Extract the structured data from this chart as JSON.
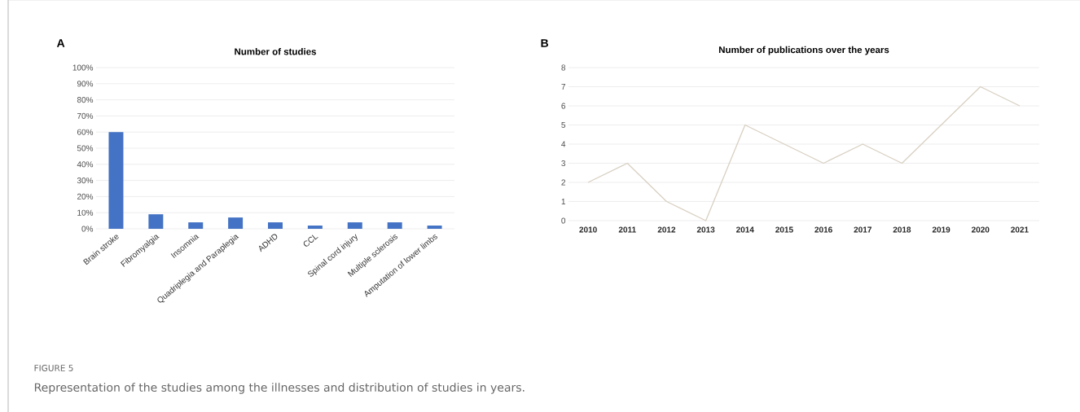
{
  "chart_data": [
    {
      "type": "bar",
      "title": "Number of studies",
      "categories": [
        "Brain stroke",
        "Fibromyalgia",
        "Insomnia",
        "Quadriplegia and Paraplegia",
        "ADHD",
        "CCL",
        "Spinal cord injury",
        "Multiple sclerosis",
        "Amputation of lower limbs"
      ],
      "values": [
        60,
        9,
        4,
        7,
        4,
        2,
        4,
        4,
        2
      ],
      "color": "#4472c4",
      "ylim": [
        0,
        100
      ],
      "yticks": [
        {
          "value": 0,
          "label": "0%"
        },
        {
          "value": 10,
          "label": "10%"
        },
        {
          "value": 20,
          "label": "20%"
        },
        {
          "value": 30,
          "label": "30%"
        },
        {
          "value": 40,
          "label": "40%"
        },
        {
          "value": 50,
          "label": "50%"
        },
        {
          "value": 60,
          "label": "60%"
        },
        {
          "value": 70,
          "label": "70%"
        },
        {
          "value": 80,
          "label": "80%"
        },
        {
          "value": 90,
          "label": "90%"
        },
        {
          "value": 100,
          "label": "100%"
        }
      ],
      "grid": "y",
      "annotations": [
        "A",
        "FIGURE 5",
        "Representation of the studies among the illnesses and distribution of studies in years."
      ]
    },
    {
      "type": "line",
      "title": "Number of publications over the years",
      "x": [
        2010,
        2011,
        2012,
        2013,
        2014,
        2015,
        2016,
        2017,
        2018,
        2019,
        2020,
        2021
      ],
      "values": [
        2,
        3,
        1,
        0,
        5,
        4,
        3,
        4,
        3,
        5,
        7,
        6
      ],
      "color": "#d8d0c2",
      "xlim": [
        2009.5,
        2021.5
      ],
      "xticks": [
        2010,
        2011,
        2012,
        2013,
        2014,
        2015,
        2016,
        2017,
        2018,
        2019,
        2020,
        2021
      ],
      "ylim": [
        0,
        8
      ],
      "yticks": [
        0,
        1,
        2,
        3,
        4,
        5,
        6,
        7,
        8
      ],
      "grid": "y",
      "annotations": [
        "B"
      ]
    }
  ]
}
